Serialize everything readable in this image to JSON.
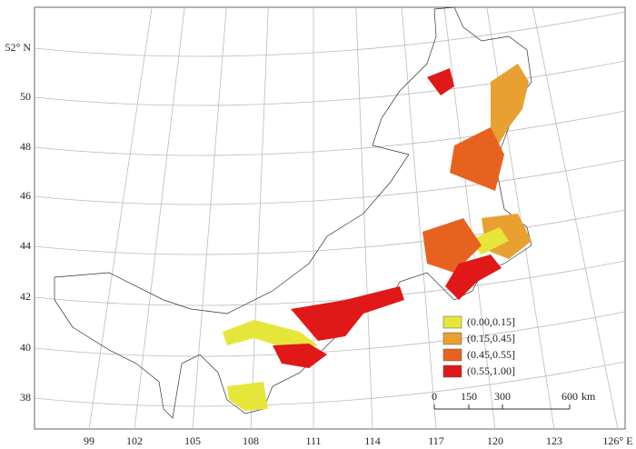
{
  "map": {
    "lat_labels": [
      "52° N",
      "50",
      "48",
      "46",
      "44",
      "42",
      "40",
      "38"
    ],
    "lon_labels": [
      "99",
      "102",
      "105",
      "108",
      "111",
      "114",
      "117",
      "120",
      "123",
      "126° E"
    ],
    "legend": [
      {
        "label": "(0.00,0.15]",
        "color": "#e6e63a"
      },
      {
        "label": "(0.15,0.45]",
        "color": "#e8a030"
      },
      {
        "label": "(0.45,0.55]",
        "color": "#e8621f"
      },
      {
        "label": "(0.55,1.00]",
        "color": "#e01818"
      }
    ],
    "scale_labels": [
      "0",
      "150",
      "300",
      "600",
      "km"
    ]
  }
}
